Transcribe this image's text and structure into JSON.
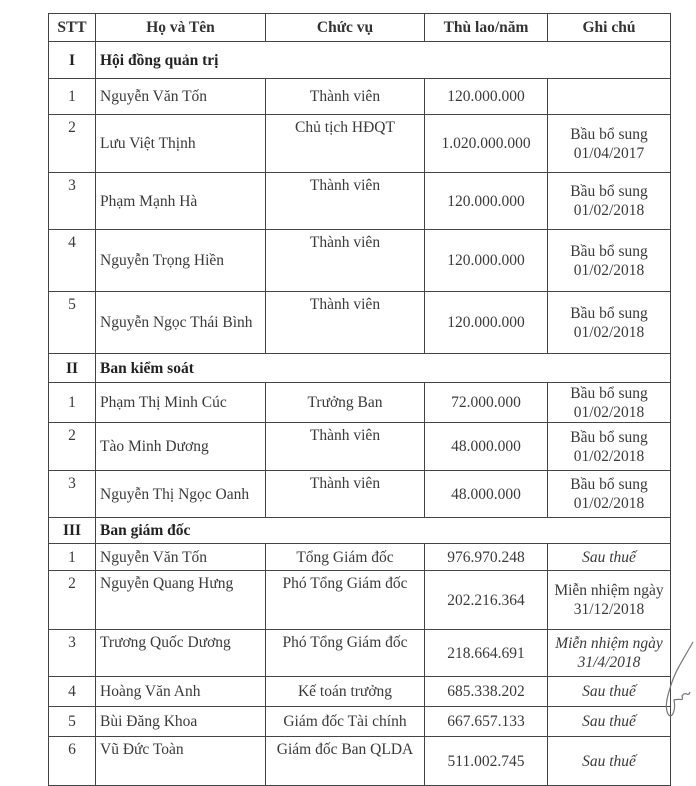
{
  "headers": [
    "STT",
    "Họ và Tên",
    "Chức vụ",
    "Thù lao/năm",
    "Ghi chú"
  ],
  "sections": [
    {
      "num": "I",
      "title": "Hội đồng quản trị",
      "rows": [
        {
          "stt": "1",
          "name": "Nguyễn Văn Tốn",
          "role": "Thành viên",
          "pay": "120.000.000",
          "note": ""
        },
        {
          "stt": "2",
          "name": "Lưu Việt Thịnh",
          "role": "Chủ tịch HĐQT",
          "pay": "1.020.000.000",
          "note": "Bầu bổ sung 01/04/2017"
        },
        {
          "stt": "3",
          "name": "Phạm Mạnh Hà",
          "role": "Thành viên",
          "pay": "120.000.000",
          "note": "Bầu bổ sung 01/02/2018"
        },
        {
          "stt": "4",
          "name": "Nguyễn Trọng Hiền",
          "role": "Thành viên",
          "pay": "120.000.000",
          "note": "Bầu bổ sung 01/02/2018"
        },
        {
          "stt": "5",
          "name": "Nguyễn Ngọc Thái Bình",
          "role": "Thành viên",
          "pay": "120.000.000",
          "note": "Bầu bổ sung 01/02/2018"
        }
      ]
    },
    {
      "num": "II",
      "title": "Ban kiểm soát",
      "rows": [
        {
          "stt": "1",
          "name": "Phạm Thị Minh Cúc",
          "role": "Trưởng Ban",
          "pay": "72.000.000",
          "note": "Bầu bổ sung 01/02/2018"
        },
        {
          "stt": "2",
          "name": "Tào Minh Dương",
          "role": "Thành viên",
          "pay": "48.000.000",
          "note": "Bầu bổ sung 01/02/2018"
        },
        {
          "stt": "3",
          "name": "Nguyễn Thị Ngọc Oanh",
          "role": "Thành viên",
          "pay": "48.000.000",
          "note": "Bầu bổ sung 01/02/2018"
        }
      ]
    },
    {
      "num": "III",
      "title": "Ban giám đốc",
      "rows": [
        {
          "stt": "1",
          "name": "Nguyễn Văn Tốn",
          "role": "Tổng Giám đốc",
          "pay": "976.970.248",
          "note": "Sau thuế"
        },
        {
          "stt": "2",
          "name": "Nguyễn Quang Hưng",
          "role": "Phó Tổng Giám đốc",
          "pay": "202.216.364",
          "note": "Miễn nhiệm ngày 31/12/2018"
        },
        {
          "stt": "3",
          "name": "Trương Quốc Dương",
          "role": "Phó Tổng Giám đốc",
          "pay": "218.664.691",
          "note": "Miễn nhiệm ngày 31/4/2018"
        },
        {
          "stt": "4",
          "name": "Hoàng Văn Anh",
          "role": "Kế toán trưởng",
          "pay": "685.338.202",
          "note": "Sau thuế"
        },
        {
          "stt": "5",
          "name": "Bùi Đăng Khoa",
          "role": "Giám đốc Tài chính",
          "pay": "667.657.133",
          "note": "Sau thuế"
        },
        {
          "stt": "6",
          "name": "Vũ Đức Toàn",
          "role": "Giám đốc Ban QLDA",
          "pay": "511.002.745",
          "note": "Sau thuế"
        }
      ]
    }
  ]
}
